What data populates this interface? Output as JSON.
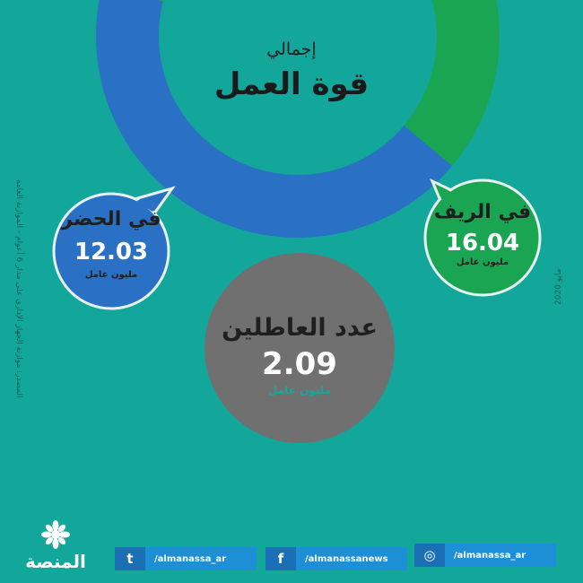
{
  "header": {
    "title_small": "إجمالي",
    "title_big": "قوة العمل"
  },
  "chart_data": {
    "type": "pie",
    "title": "إجمالي قوة العمل",
    "series": [
      {
        "name": "في الريف",
        "value": 16.04,
        "unit": "مليون عامل",
        "color": "#19a552"
      },
      {
        "name": "في الحضر",
        "value": 12.03,
        "unit": "مليون عامل",
        "color": "#2a70c4"
      }
    ],
    "extra": {
      "name": "عدد العاطلين",
      "value": 2.09,
      "unit": "مليون عامل",
      "color": "#707070"
    }
  },
  "bubbles": {
    "rural": {
      "label": "في الريف",
      "value": "16.04",
      "unit": "مليون عامل"
    },
    "urban": {
      "label": "في الحضر",
      "value": "12.03",
      "unit": "مليون عامل"
    },
    "unemployed": {
      "label": "عدد العاطلين",
      "value": "2.09",
      "unit": "مليون عامل"
    }
  },
  "source_note": "المصدر: موازنة الجهاز الإداري على مدار 6 أعوام - الموازنة العامة",
  "date_note": "مايو 2020",
  "logo": {
    "text": "المنصة",
    "icon": "flower-logo-icon"
  },
  "social": [
    {
      "icon": "twitter-icon",
      "glyph": "t",
      "handle": "/almanassa_ar"
    },
    {
      "icon": "facebook-icon",
      "glyph": "f",
      "handle": "/almanassanews"
    },
    {
      "icon": "instagram-icon",
      "glyph": "◎",
      "handle": "/almanassa_ar"
    }
  ],
  "colors": {
    "background": "#13a79c",
    "rural": "#19a552",
    "urban": "#2a70c4",
    "unemployed": "#707070",
    "social_dark": "#1b6fb5",
    "social_light": "#1d8fd6"
  }
}
